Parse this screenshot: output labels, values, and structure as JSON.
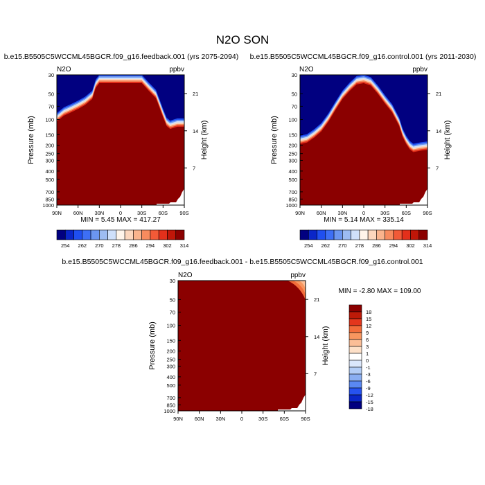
{
  "title": "N2O SON",
  "colors": {
    "control_field": "#8b0000",
    "cap": "#010080",
    "frame": "#000000",
    "positive_scale": [
      "#010080",
      "#0a26c8",
      "#1f4ff0",
      "#3d6ff5",
      "#6b96f0",
      "#9dbcf2",
      "#cfe0fa",
      "#fff5ea",
      "#fcd7bd",
      "#fab48d",
      "#f78b5e",
      "#f25a37",
      "#e3301b",
      "#c01608",
      "#8b0000"
    ],
    "diff_scale": [
      "#010080",
      "#0a26c8",
      "#2652f0",
      "#5a88f2",
      "#8aaef2",
      "#b3cdf6",
      "#dbe7fb",
      "#ffffff",
      "#fde0c8",
      "#fbbe97",
      "#f8965f",
      "#f26c3a",
      "#e3361c",
      "#be1a08",
      "#8b0000"
    ]
  },
  "chart_data": [
    {
      "type": "heatmap",
      "title": "b.e15.B5505C5WCCML45BGCR.f09_g16.feedback.001 (yrs 2075-2094)",
      "left_label": "N2O",
      "right_label": "ppbv",
      "xlabel": "",
      "ylabel": "Pressure (mb)",
      "y2label": "Height (km)",
      "x_ticks": [
        "90N",
        "60N",
        "30N",
        "0",
        "30S",
        "60S",
        "90S"
      ],
      "y_ticks": [
        "30",
        "50",
        "70",
        "100",
        "150",
        "200",
        "250",
        "300",
        "400",
        "500",
        "700",
        "850",
        "1000"
      ],
      "y2_ticks": [
        "21",
        "14",
        "7"
      ],
      "ylim": [
        1000,
        30
      ],
      "y_scale": "log",
      "stats": "MIN =   5.45  MAX = 417.27",
      "colorbar": {
        "labels": [
          "254",
          "262",
          "270",
          "278",
          "286",
          "294",
          "302",
          "314"
        ],
        "orientation": "horizontal"
      },
      "top_boundary_pressure": [
        [
          90,
          84
        ],
        [
          80,
          72
        ],
        [
          70,
          66
        ],
        [
          60,
          60
        ],
        [
          50,
          54
        ],
        [
          40,
          46
        ],
        [
          35,
          34
        ],
        [
          30,
          30
        ],
        [
          -30,
          30
        ],
        [
          -40,
          37
        ],
        [
          -50,
          45
        ],
        [
          -55,
          58
        ],
        [
          -60,
          75
        ],
        [
          -65,
          95
        ],
        [
          -70,
          103
        ],
        [
          -80,
          97
        ],
        [
          -90,
          97
        ]
      ]
    },
    {
      "type": "heatmap",
      "title": "b.e15.B5505C5WCCML45BGCR.f09_g16.control.001 (yrs 2011-2030)",
      "left_label": "N2O",
      "right_label": "ppbv",
      "xlabel": "",
      "ylabel": "Pressure (mb)",
      "y2label": "Height (km)",
      "x_ticks": [
        "90N",
        "60N",
        "30N",
        "0",
        "30S",
        "60S",
        "90S"
      ],
      "y_ticks": [
        "30",
        "50",
        "70",
        "100",
        "150",
        "200",
        "250",
        "300",
        "400",
        "500",
        "700",
        "850",
        "1000"
      ],
      "y2_ticks": [
        "21",
        "14",
        "7"
      ],
      "ylim": [
        1000,
        30
      ],
      "y_scale": "log",
      "stats": "MIN =   5.14  MAX = 335.14",
      "colorbar": {
        "labels": [
          "254",
          "262",
          "270",
          "278",
          "286",
          "294",
          "302",
          "314"
        ],
        "orientation": "horizontal"
      },
      "top_boundary_pressure": [
        [
          90,
          155
        ],
        [
          80,
          148
        ],
        [
          70,
          130
        ],
        [
          60,
          110
        ],
        [
          50,
          85
        ],
        [
          40,
          62
        ],
        [
          30,
          46
        ],
        [
          20,
          37
        ],
        [
          10,
          31
        ],
        [
          0,
          30
        ],
        [
          -10,
          32
        ],
        [
          -20,
          40
        ],
        [
          -30,
          52
        ],
        [
          -40,
          66
        ],
        [
          -50,
          95
        ],
        [
          -55,
          128
        ],
        [
          -60,
          155
        ],
        [
          -65,
          178
        ],
        [
          -70,
          192
        ],
        [
          -80,
          185
        ],
        [
          -90,
          180
        ]
      ]
    },
    {
      "type": "heatmap",
      "title": "b.e15.B5505C5WCCML45BGCR.f09_g16.feedback.001 - b.e15.B5505C5WCCML45BGCR.f09_g16.control.001",
      "left_label": "N2O",
      "right_label": "ppbv",
      "xlabel": "",
      "ylabel": "Pressure (mb)",
      "y2label": "Height (km)",
      "x_ticks": [
        "90N",
        "60N",
        "30N",
        "0",
        "30S",
        "60S",
        "90S"
      ],
      "y_ticks": [
        "30",
        "50",
        "70",
        "100",
        "150",
        "200",
        "250",
        "300",
        "400",
        "500",
        "700",
        "850",
        "1000"
      ],
      "y2_ticks": [
        "21",
        "14",
        "7"
      ],
      "ylim": [
        1000,
        30
      ],
      "y_scale": "log",
      "stats": "MIN =  -2.80  MAX = 109.00",
      "colorbar": {
        "labels": [
          "18",
          "15",
          "12",
          "9",
          "6",
          "3",
          "1",
          "0",
          "-1",
          "-3",
          "-6",
          "-9",
          "-12",
          "-15",
          "-18"
        ],
        "orientation": "vertical"
      }
    }
  ]
}
